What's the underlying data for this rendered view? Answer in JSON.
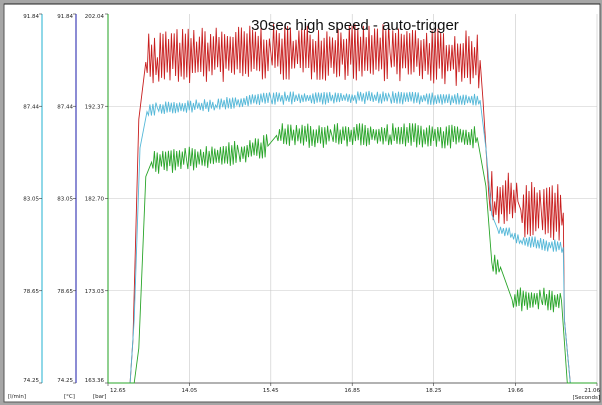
{
  "chart_data": {
    "type": "line",
    "title": "30sec high speed - auto-trigger",
    "grid": true,
    "x_axis": {
      "unit_label": "[Seconds]",
      "range": [
        12.65,
        21.06
      ],
      "ticks": [
        {
          "value": 12.65,
          "label": "12.65"
        },
        {
          "value": 14.05,
          "label": "14.05"
        },
        {
          "value": 15.45,
          "label": "15.45"
        },
        {
          "value": 16.85,
          "label": "16.85"
        },
        {
          "value": 18.25,
          "label": "18.25"
        },
        {
          "value": 19.66,
          "label": "19.66"
        },
        {
          "value": 21.06,
          "label": "21.06"
        }
      ]
    },
    "y_axes": [
      {
        "unit_label": "[l/min]",
        "color": "#20b0d0",
        "range": [
          74.25,
          91.84
        ],
        "tick_labels": [
          "91.84",
          "87.44",
          "83.05",
          "78.65",
          "74.25"
        ]
      },
      {
        "unit_label": "[°C]",
        "color": "#1a1aa8",
        "range": [
          74.25,
          91.84
        ],
        "tick_labels": [
          "91.84",
          "87.44",
          "83.05",
          "78.65",
          "74.25"
        ]
      },
      {
        "unit_label": "[bar]",
        "color": "#20a020",
        "range": [
          163.36,
          202.04
        ],
        "tick_labels": [
          "202.04",
          "192.37",
          "182.70",
          "173.03",
          "163.36"
        ]
      }
    ],
    "series": [
      {
        "color": "#c81e1e",
        "axis": 2,
        "noise": 3.0,
        "points": [
          [
            12.65,
            163.36
          ],
          [
            13.03,
            163.36
          ],
          [
            13.08,
            168
          ],
          [
            13.18,
            191
          ],
          [
            13.3,
            197
          ],
          [
            13.5,
            197.5
          ],
          [
            15.45,
            198
          ],
          [
            17.5,
            198
          ],
          [
            19.05,
            197.2
          ],
          [
            19.1,
            193
          ],
          [
            19.2,
            183
          ],
          [
            19.3,
            182.4
          ],
          [
            19.7,
            182.4
          ],
          [
            19.75,
            181.5
          ],
          [
            20.1,
            181.5
          ],
          [
            20.48,
            181.2
          ],
          [
            20.5,
            170
          ],
          [
            20.6,
            163.36
          ],
          [
            21.06,
            163.36
          ]
        ]
      },
      {
        "color": "#55b8d8",
        "axis": 2,
        "noise": 0.7,
        "points": [
          [
            12.65,
            163.36
          ],
          [
            13.03,
            163.36
          ],
          [
            13.1,
            170
          ],
          [
            13.2,
            188
          ],
          [
            13.32,
            191.8
          ],
          [
            13.5,
            192.2
          ],
          [
            14.5,
            192.5
          ],
          [
            15.45,
            193.2
          ],
          [
            17.5,
            193.3
          ],
          [
            19.05,
            193.0
          ],
          [
            19.15,
            188
          ],
          [
            19.25,
            181
          ],
          [
            19.35,
            179.5
          ],
          [
            19.6,
            179
          ],
          [
            19.75,
            178.3
          ],
          [
            20.48,
            177.6
          ],
          [
            20.5,
            170
          ],
          [
            20.6,
            163.36
          ],
          [
            21.06,
            163.36
          ]
        ]
      },
      {
        "color": "#2aa52a",
        "axis": 2,
        "noise": 1.3,
        "points": [
          [
            12.65,
            163.36
          ],
          [
            13.1,
            163.36
          ],
          [
            13.18,
            167
          ],
          [
            13.3,
            185
          ],
          [
            13.4,
            186.5
          ],
          [
            14.0,
            186.8
          ],
          [
            14.9,
            187.5
          ],
          [
            15.4,
            188.2
          ],
          [
            15.55,
            189.3
          ],
          [
            16.5,
            189.3
          ],
          [
            17.5,
            189.4
          ],
          [
            19.0,
            189.1
          ],
          [
            19.15,
            184
          ],
          [
            19.25,
            176
          ],
          [
            19.4,
            175.5
          ],
          [
            19.6,
            172.1
          ],
          [
            20.1,
            172.1
          ],
          [
            20.45,
            172.0
          ],
          [
            20.55,
            163.36
          ],
          [
            21.06,
            163.36
          ]
        ]
      }
    ]
  }
}
